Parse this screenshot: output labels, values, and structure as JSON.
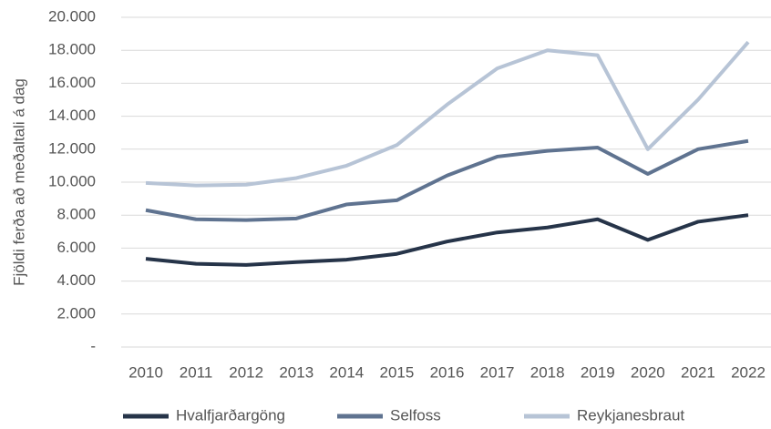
{
  "chart_data": {
    "type": "line",
    "y_label": "Fjöldi ferða að meðaltali á dag",
    "categories": [
      "2010",
      "2011",
      "2012",
      "2013",
      "2014",
      "2015",
      "2016",
      "2017",
      "2018",
      "2019",
      "2020",
      "2021",
      "2022"
    ],
    "series": [
      {
        "name": "Hvalfjarðargöng",
        "color": "#263449",
        "values": [
          5350,
          5050,
          4980,
          5150,
          5300,
          5650,
          6400,
          6950,
          7250,
          7750,
          6500,
          7600,
          8000
        ]
      },
      {
        "name": "Selfoss",
        "color": "#5f7390",
        "values": [
          8300,
          7750,
          7700,
          7800,
          8650,
          8900,
          10400,
          11550,
          11900,
          12100,
          10500,
          12000,
          12500
        ]
      },
      {
        "name": "Reykjanesbraut",
        "color": "#b7c4d6",
        "values": [
          9950,
          9800,
          9850,
          10250,
          11000,
          12250,
          14700,
          16900,
          18000,
          17700,
          12000,
          15000,
          18500
        ]
      }
    ],
    "ylim": [
      0,
      20000
    ],
    "yticks": [
      {
        "value": 0,
        "label": "-"
      },
      {
        "value": 2000,
        "label": "2.000"
      },
      {
        "value": 4000,
        "label": "4.000"
      },
      {
        "value": 6000,
        "label": "6.000"
      },
      {
        "value": 8000,
        "label": "8.000"
      },
      {
        "value": 10000,
        "label": "10.000"
      },
      {
        "value": 12000,
        "label": "12.000"
      },
      {
        "value": 14000,
        "label": "14.000"
      },
      {
        "value": 16000,
        "label": "16.000"
      },
      {
        "value": 18000,
        "label": "18.000"
      },
      {
        "value": 20000,
        "label": "20.000"
      }
    ],
    "grid": true,
    "legend": "bottom"
  }
}
